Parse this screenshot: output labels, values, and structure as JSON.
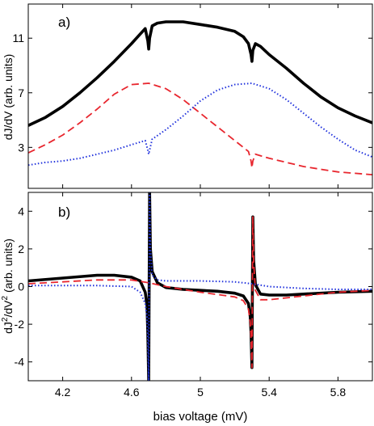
{
  "figure": {
    "xlabel": "bias voltage (mV)"
  },
  "chart_data": [
    {
      "type": "line",
      "panel_label": "a)",
      "ylabel": "dJ/dV (arb. units)",
      "xlim": [
        4.0,
        6.0
      ],
      "ylim": [
        0.0,
        13.5
      ],
      "yticks": [
        3,
        7,
        11
      ],
      "yticklabels": [
        "3",
        "7",
        "11"
      ],
      "grid": false,
      "series": [
        {
          "color": "#000000",
          "style": "solid",
          "x": [
            4.0,
            4.1,
            4.2,
            4.3,
            4.4,
            4.5,
            4.6,
            4.65,
            4.68,
            4.695,
            4.7,
            4.705,
            4.72,
            4.75,
            4.8,
            4.9,
            5.0,
            5.1,
            5.2,
            5.25,
            5.28,
            5.295,
            5.3,
            5.305,
            5.32,
            5.35,
            5.4,
            5.5,
            5.6,
            5.7,
            5.8,
            5.9,
            6.0
          ],
          "y": [
            4.6,
            5.2,
            6.0,
            7.0,
            8.1,
            9.3,
            10.6,
            11.3,
            11.7,
            10.8,
            10.2,
            11.0,
            11.9,
            12.1,
            12.2,
            12.2,
            12.0,
            11.8,
            11.5,
            11.1,
            10.6,
            9.8,
            9.3,
            10.1,
            10.6,
            10.4,
            9.8,
            8.8,
            7.7,
            6.7,
            5.9,
            5.3,
            4.8
          ]
        },
        {
          "color": "#e8262e",
          "style": "dashed",
          "x": [
            4.0,
            4.1,
            4.2,
            4.3,
            4.4,
            4.5,
            4.6,
            4.7,
            4.8,
            4.9,
            5.0,
            5.1,
            5.2,
            5.28,
            5.295,
            5.3,
            5.305,
            5.32,
            5.4,
            5.5,
            5.6,
            5.7,
            5.8,
            5.9,
            6.0
          ],
          "y": [
            2.6,
            3.2,
            3.9,
            4.8,
            5.8,
            6.9,
            7.6,
            7.7,
            7.3,
            6.5,
            5.5,
            4.5,
            3.5,
            2.7,
            2.0,
            1.5,
            2.0,
            2.5,
            2.2,
            1.9,
            1.6,
            1.4,
            1.2,
            1.1,
            1.0
          ]
        },
        {
          "color": "#2233dd",
          "style": "dotted",
          "x": [
            4.0,
            4.1,
            4.2,
            4.3,
            4.4,
            4.5,
            4.6,
            4.68,
            4.695,
            4.7,
            4.705,
            4.72,
            4.8,
            4.9,
            5.0,
            5.1,
            5.2,
            5.3,
            5.4,
            5.5,
            5.6,
            5.7,
            5.8,
            5.9,
            6.0
          ],
          "y": [
            1.7,
            1.9,
            2.0,
            2.2,
            2.5,
            2.8,
            3.2,
            3.5,
            2.8,
            2.5,
            2.8,
            3.6,
            4.3,
            5.3,
            6.4,
            7.2,
            7.6,
            7.7,
            7.3,
            6.5,
            5.5,
            4.5,
            3.6,
            2.8,
            2.3
          ]
        }
      ]
    },
    {
      "type": "line",
      "panel_label": "b)",
      "ylabel_parts": [
        "dJ",
        "2",
        "/dV",
        "2",
        " (arb. units)"
      ],
      "xlim": [
        4.0,
        6.0
      ],
      "ylim": [
        -5.0,
        5.0
      ],
      "xticks": [
        4.2,
        4.6,
        5.0,
        5.4,
        5.8
      ],
      "xticklabels": [
        "4.2",
        "4.6",
        "5",
        "5.4",
        "5.8"
      ],
      "yticks": [
        -4,
        -2,
        0,
        2,
        4
      ],
      "yticklabels": [
        "-4",
        "-2",
        "0",
        "2",
        "4"
      ],
      "grid": false,
      "series": [
        {
          "color": "#000000",
          "style": "solid",
          "x": [
            4.0,
            4.2,
            4.4,
            4.5,
            4.6,
            4.65,
            4.68,
            4.69,
            4.695,
            4.7,
            4.705,
            4.71,
            4.72,
            4.75,
            4.8,
            4.9,
            5.0,
            5.1,
            5.2,
            5.25,
            5.28,
            5.29,
            5.295,
            5.3,
            5.305,
            5.31,
            5.32,
            5.35,
            5.4,
            5.5,
            5.6,
            5.8,
            6.0
          ],
          "y": [
            0.3,
            0.45,
            0.6,
            0.6,
            0.5,
            0.3,
            -0.3,
            -1.0,
            -2.5,
            -5.0,
            5.0,
            2.0,
            0.8,
            0.2,
            -0.05,
            -0.15,
            -0.2,
            -0.25,
            -0.35,
            -0.5,
            -0.9,
            -1.6,
            -2.5,
            -4.3,
            3.7,
            1.4,
            0.1,
            -0.4,
            -0.45,
            -0.45,
            -0.4,
            -0.3,
            -0.25
          ]
        },
        {
          "color": "#e8262e",
          "style": "dashed",
          "x": [
            4.0,
            4.2,
            4.4,
            4.6,
            4.7,
            4.8,
            5.0,
            5.2,
            5.25,
            5.28,
            5.29,
            5.295,
            5.3,
            5.305,
            5.31,
            5.32,
            5.35,
            5.4,
            5.6,
            5.8,
            6.0
          ],
          "y": [
            0.15,
            0.25,
            0.35,
            0.35,
            0.2,
            0.0,
            -0.3,
            -0.55,
            -0.75,
            -1.2,
            -1.9,
            -2.8,
            -4.3,
            3.7,
            1.3,
            -0.2,
            -0.7,
            -0.7,
            -0.5,
            -0.3,
            -0.2
          ]
        },
        {
          "color": "#2233dd",
          "style": "dotted",
          "x": [
            4.0,
            4.2,
            4.4,
            4.6,
            4.65,
            4.68,
            4.69,
            4.695,
            4.7,
            4.705,
            4.71,
            4.72,
            4.75,
            4.8,
            5.0,
            5.2,
            5.3,
            5.4,
            5.6,
            5.8,
            6.0
          ],
          "y": [
            0.05,
            0.05,
            0.05,
            0.0,
            -0.3,
            -0.9,
            -1.6,
            -2.6,
            -5.0,
            5.0,
            2.0,
            0.6,
            0.35,
            0.3,
            0.3,
            0.25,
            0.15,
            0.0,
            -0.1,
            -0.15,
            -0.15
          ]
        }
      ]
    }
  ]
}
